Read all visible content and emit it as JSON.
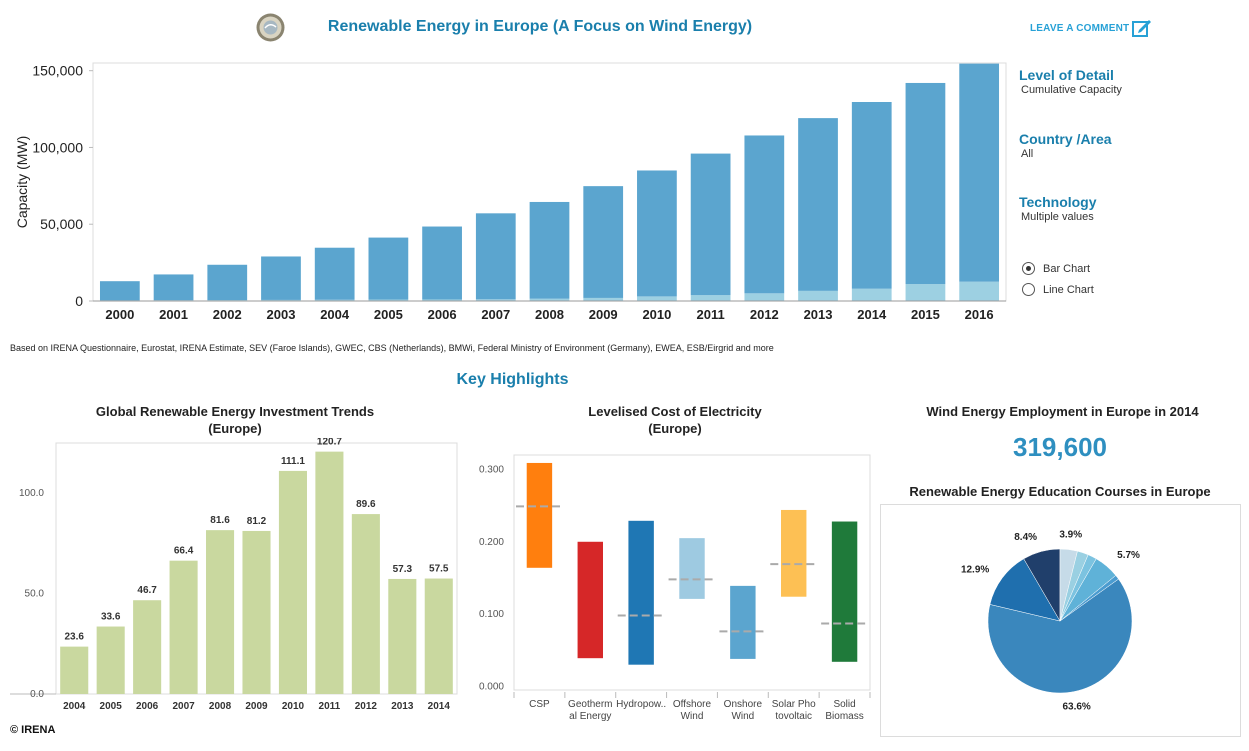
{
  "header": {
    "title": "Renewable Energy in Europe (A Focus on Wind Energy)",
    "comment_label": "LEAVE A COMMENT"
  },
  "filters": {
    "level_label": "Level of Detail",
    "level_value": "Cumulative Capacity",
    "country_label": "Country /Area",
    "country_value": "All",
    "tech_label": "Technology",
    "tech_value": "Multiple values",
    "radio_bar": "Bar Chart",
    "radio_line": "Line Chart"
  },
  "source_note": "Based on IRENA Questionnaire, Eurostat, IRENA Estimate, SEV (Faroe Islands), GWEC, CBS (Netherlands), BMWi, Federal Ministry of Environment (Germany), EWEA, ESB/Eirgrid and more",
  "key_highlights": "Key Highlights",
  "copyright": "© IRENA",
  "colors": {
    "accent": "#1a7fac",
    "main_bar": "#5ba5cf",
    "main_bar_light": "#9dd0e2",
    "invest_bar": "#c9d89f"
  },
  "chart_data": [
    {
      "type": "bar",
      "ylabel": "Capacity (MW)",
      "ylim": [
        0,
        155000
      ],
      "yticks": [
        0,
        50000,
        100000,
        150000
      ],
      "ytick_labels": [
        "0",
        "50,000",
        "100,000",
        "150,000"
      ],
      "categories": [
        "2000",
        "2001",
        "2002",
        "2003",
        "2004",
        "2005",
        "2006",
        "2007",
        "2008",
        "2009",
        "2010",
        "2011",
        "2012",
        "2013",
        "2014",
        "2015",
        "2016"
      ],
      "series": [
        {
          "values": [
            400,
            500,
            600,
            700,
            800,
            900,
            1000,
            1100,
            1500,
            2000,
            3000,
            3800,
            5000,
            6600,
            8000,
            11000,
            12600
          ]
        },
        {
          "values": [
            12500,
            16800,
            23000,
            28300,
            33900,
            40400,
            47500,
            56000,
            63000,
            72800,
            82000,
            92200,
            102800,
            112500,
            121600,
            131000,
            142000
          ]
        }
      ]
    },
    {
      "type": "bar",
      "title": "Global Renewable Energy Investment Trends\n(Europe)",
      "ylim": [
        0,
        125
      ],
      "yticks": [
        0,
        50,
        100
      ],
      "ytick_labels": [
        "0.0",
        "50.0",
        "100.0"
      ],
      "categories": [
        "2004",
        "2005",
        "2006",
        "2007",
        "2008",
        "2009",
        "2010",
        "2011",
        "2012",
        "2013",
        "2014"
      ],
      "values": [
        23.6,
        33.6,
        46.7,
        66.4,
        81.6,
        81.2,
        111.1,
        120.7,
        89.6,
        57.3,
        57.5
      ],
      "data_labels": [
        "23.6",
        "33.6",
        "46.7",
        "66.4",
        "81.6",
        "81.2",
        "111.1",
        "120.7",
        "89.6",
        "57.3",
        "57.5"
      ]
    },
    {
      "type": "bar",
      "title": "Levelised Cost of Electricity\n(Europe)",
      "ylim": [
        -0.005,
        0.32
      ],
      "yticks": [
        0,
        0.1,
        0.2,
        0.3
      ],
      "ytick_labels": [
        "0.000",
        "0.100",
        "0.200",
        "0.300"
      ],
      "categories": [
        "CSP",
        "Geotherm al Energy",
        "Hydropow..",
        "Offshore Wind",
        "Onshore Wind",
        "Solar Pho tovoltaic",
        "Solid Biomass"
      ],
      "category_lines": [
        [
          "CSP"
        ],
        [
          "Geotherm",
          "al Energy"
        ],
        [
          "Hydropow.."
        ],
        [
          "Offshore",
          "Wind"
        ],
        [
          "Onshore",
          "Wind"
        ],
        [
          "Solar Pho",
          "tovoltaic"
        ],
        [
          "Solid",
          "Biomass"
        ]
      ],
      "low": [
        0.164,
        0.039,
        0.03,
        0.121,
        0.038,
        0.124,
        0.034
      ],
      "high": [
        0.309,
        0.2,
        0.229,
        0.205,
        0.139,
        0.244,
        0.228
      ],
      "median": [
        0.249,
        null,
        0.098,
        0.148,
        0.076,
        0.169,
        0.087
      ],
      "colors": [
        "#ff7f0e",
        "#d62728",
        "#1f77b4",
        "#9ecae1",
        "#5ba5cf",
        "#fdc054",
        "#1f7a3a"
      ]
    },
    {
      "type": "pie",
      "title": "Renewable Energy Education Courses in Europe",
      "values": [
        63.6,
        12.9,
        8.4,
        3.9,
        2.5,
        2.0,
        5.7,
        1.0
      ],
      "labels": [
        "63.6%",
        "12.9%",
        "8.4%",
        "3.9%",
        "",
        "",
        "5.7%",
        ""
      ],
      "colors": [
        "#3a87bd",
        "#1f6fae",
        "#203f6b",
        "#c6dbe8",
        "#9ad0e2",
        "#7cc3e0",
        "#5fb2d8",
        "#4b9cd0"
      ]
    }
  ],
  "employment": {
    "title": "Wind Energy Employment in Europe in 2014",
    "value": "319,600"
  }
}
